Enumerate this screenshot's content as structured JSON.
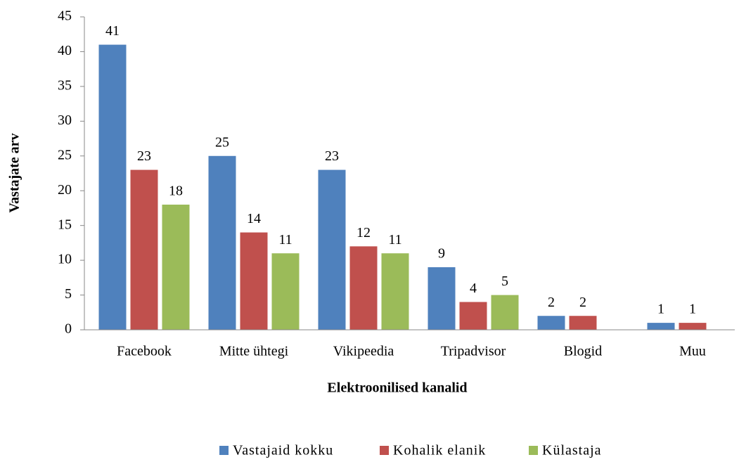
{
  "chart_data": {
    "type": "bar",
    "x_label": "Elektroonilised  kanalid",
    "y_label": "Vastajate arv",
    "categories": [
      "Facebook",
      "Mitte ühtegi",
      "Vikipeedia",
      "Tripadvisor",
      "Blogid",
      "Muu"
    ],
    "series": [
      {
        "name": "Vastajaid kokku",
        "color": "#4f81bd",
        "values": [
          41,
          25,
          23,
          9,
          2,
          1
        ]
      },
      {
        "name": "Kohalik elanik",
        "color": "#c0504d",
        "values": [
          23,
          14,
          12,
          4,
          2,
          1
        ]
      },
      {
        "name": "Külastaja",
        "color": "#9bbb59",
        "values": [
          18,
          11,
          11,
          5,
          null,
          null
        ]
      }
    ],
    "ylim": [
      0,
      45
    ],
    "yticks": [
      0,
      5,
      10,
      15,
      20,
      25,
      30,
      35,
      40,
      45
    ],
    "legend": "bottom"
  }
}
